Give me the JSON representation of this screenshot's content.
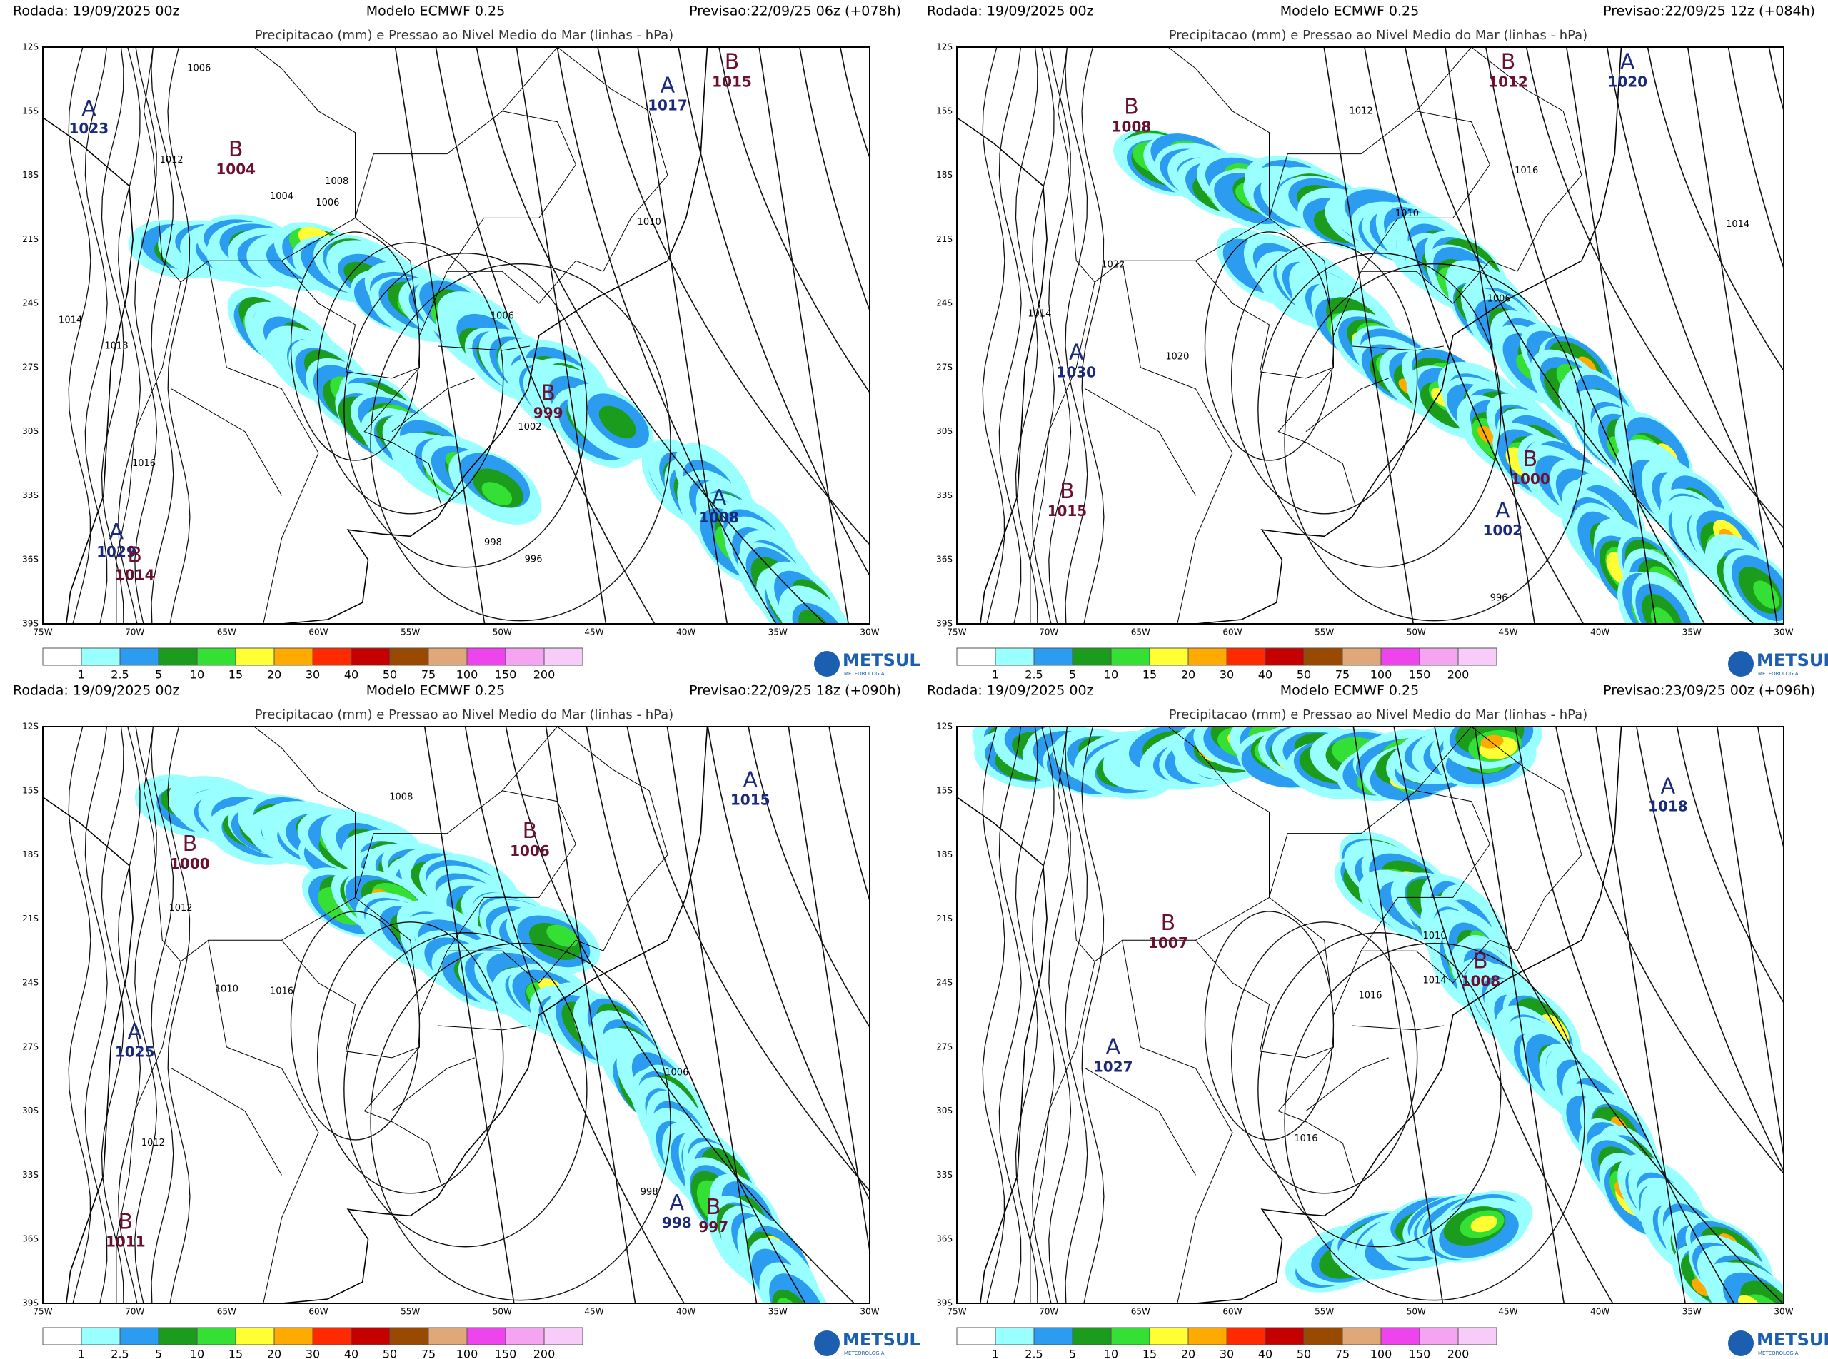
{
  "lat_labels": [
    "12S",
    "15S",
    "18S",
    "21S",
    "24S",
    "27S",
    "30S",
    "33S",
    "36S",
    "39S"
  ],
  "lon_labels": [
    "75W",
    "70W",
    "65W",
    "60W",
    "55W",
    "50W",
    "45W",
    "40W",
    "35W",
    "30W"
  ],
  "legend": [
    "1",
    "2.5",
    "5",
    "10",
    "15",
    "20",
    "30",
    "40",
    "50",
    "75",
    "100",
    "150",
    "200"
  ],
  "logo": "METSUL",
  "logo_sub": "METEOROLOGIA",
  "panels": [
    {
      "run": "Rodada: 19/09/2025 00z",
      "model": "Modelo ECMWF 0.25",
      "forecast": "Previsao:22/09/25 06z (+078h)",
      "title": "Precipitacao (mm) e Pressao ao Nivel Medio do Mar (linhas - hPa)",
      "systems": [
        {
          "type": "A",
          "value": "1023"
        },
        {
          "type": "B",
          "value": "1004"
        },
        {
          "type": "A",
          "value": "1017"
        },
        {
          "type": "B",
          "value": "1015"
        },
        {
          "type": "B",
          "value": "999"
        },
        {
          "type": "A",
          "value": "1008"
        },
        {
          "type": "A",
          "value": "1029"
        },
        {
          "type": "B",
          "value": "1014"
        }
      ],
      "isobars": [
        "1006",
        "1012",
        "1008",
        "1006",
        "1004",
        "1014",
        "1018",
        "1016",
        "1006",
        "1002",
        "998",
        "996",
        "1010"
      ]
    },
    {
      "run": "Rodada: 19/09/2025 00z",
      "model": "Modelo ECMWF 0.25",
      "forecast": "Previsao:22/09/25 12z (+084h)",
      "title": "Precipitacao (mm) e Pressao ao Nivel Medio do Mar (linhas - hPa)",
      "systems": [
        {
          "type": "B",
          "value": "1008"
        },
        {
          "type": "B",
          "value": "1012"
        },
        {
          "type": "A",
          "value": "1020"
        },
        {
          "type": "A",
          "value": "1030"
        },
        {
          "type": "B",
          "value": "1015"
        },
        {
          "type": "B",
          "value": "1000"
        },
        {
          "type": "A",
          "value": "1002"
        }
      ],
      "isobars": [
        "1012",
        "1016",
        "1010",
        "1022",
        "1014",
        "1020",
        "1006",
        "996",
        "1014"
      ]
    },
    {
      "run": "Rodada: 19/09/2025 00z",
      "model": "Modelo ECMWF 0.25",
      "forecast": "Previsao:22/09/25 18z (+090h)",
      "title": "Precipitacao (mm) e Pressao ao Nivel Medio do Mar (linhas - hPa)",
      "systems": [
        {
          "type": "B",
          "value": "1000"
        },
        {
          "type": "B",
          "value": "1006"
        },
        {
          "type": "A",
          "value": "1015"
        },
        {
          "type": "A",
          "value": "1025"
        },
        {
          "type": "B",
          "value": "1011"
        },
        {
          "type": "A",
          "value": "998"
        },
        {
          "type": "B",
          "value": "997"
        }
      ],
      "isobars": [
        "1008",
        "1012",
        "1010",
        "1016",
        "1012",
        "1006",
        "998"
      ]
    },
    {
      "run": "Rodada: 19/09/2025 00z",
      "model": "Modelo ECMWF 0.25",
      "forecast": "Previsao:23/09/25 00z (+096h)",
      "title": "Precipitacao (mm) e Pressao ao Nivel Medio do Mar (linhas - hPa)",
      "systems": [
        {
          "type": "A",
          "value": "1018"
        },
        {
          "type": "B",
          "value": "1007"
        },
        {
          "type": "B",
          "value": "1008"
        },
        {
          "type": "A",
          "value": "1027"
        }
      ],
      "isobars": [
        "1016",
        "1016",
        "1010",
        "1014"
      ]
    }
  ]
}
